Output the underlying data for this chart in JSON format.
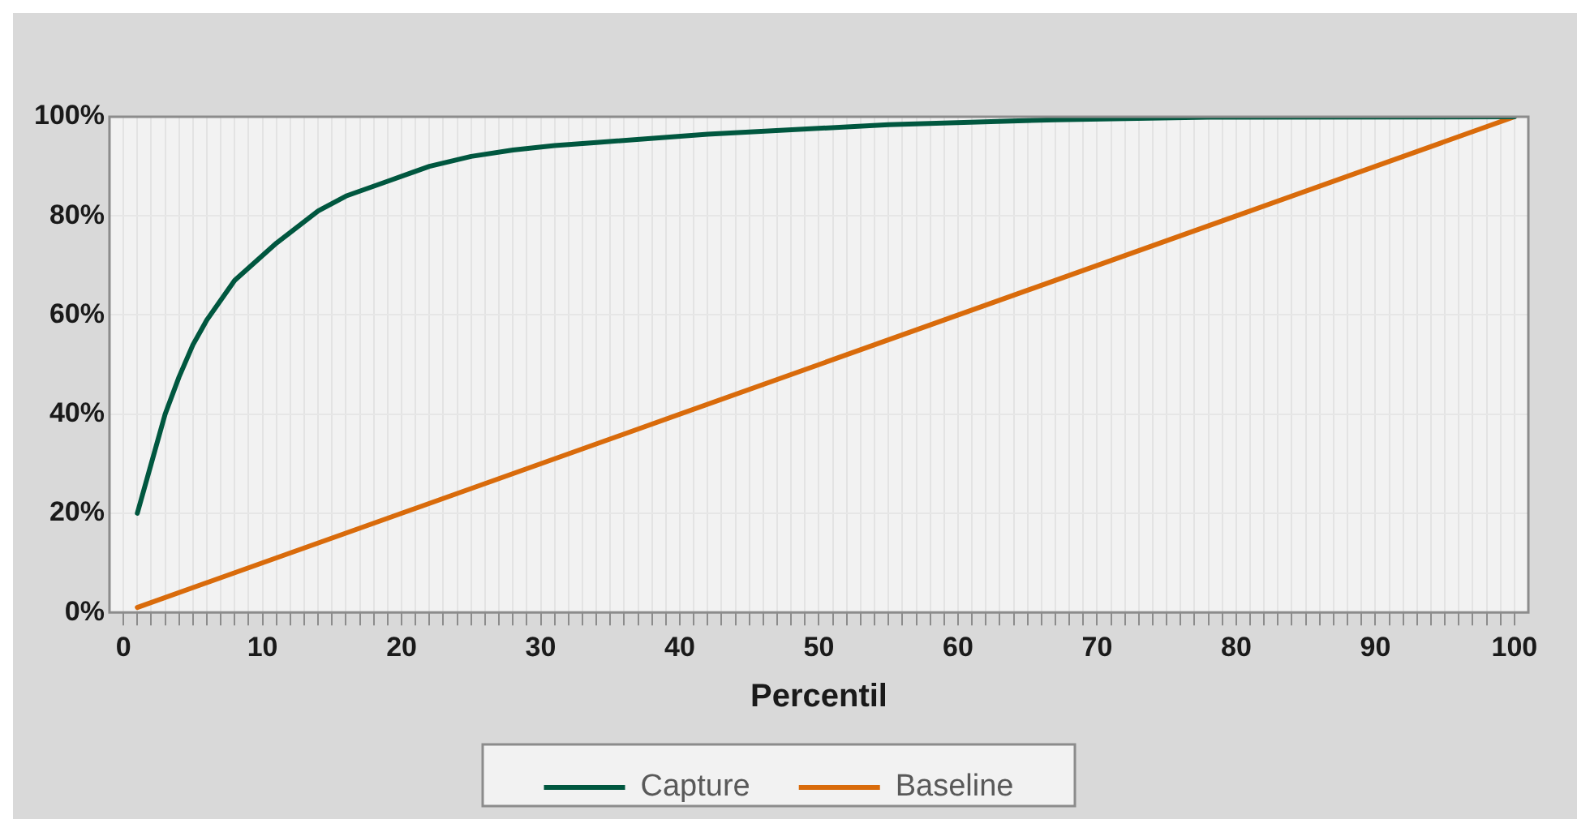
{
  "chart_data": {
    "type": "line",
    "xlabel": "Percentil",
    "xlim": [
      -1,
      101
    ],
    "xticks": [
      0,
      {
        "value": 1,
        "label": null
      },
      {
        "value": 2,
        "label": null
      },
      {
        "value": 3,
        "label": null
      },
      {
        "value": 4,
        "label": null
      },
      {
        "value": 5,
        "label": null
      },
      {
        "value": 6,
        "label": null
      },
      {
        "value": 7,
        "label": null
      },
      {
        "value": 8,
        "label": null
      },
      {
        "value": 9,
        "label": null
      },
      10,
      {
        "value": 11,
        "label": null
      },
      {
        "value": 12,
        "label": null
      },
      {
        "value": 13,
        "label": null
      },
      {
        "value": 14,
        "label": null
      },
      {
        "value": 15,
        "label": null
      },
      {
        "value": 16,
        "label": null
      },
      {
        "value": 17,
        "label": null
      },
      {
        "value": 18,
        "label": null
      },
      {
        "value": 19,
        "label": null
      },
      20,
      {
        "value": 21,
        "label": null
      },
      {
        "value": 22,
        "label": null
      },
      {
        "value": 23,
        "label": null
      },
      {
        "value": 24,
        "label": null
      },
      {
        "value": 25,
        "label": null
      },
      {
        "value": 26,
        "label": null
      },
      {
        "value": 27,
        "label": null
      },
      {
        "value": 28,
        "label": null
      },
      {
        "value": 29,
        "label": null
      },
      30,
      {
        "value": 31,
        "label": null
      },
      {
        "value": 32,
        "label": null
      },
      {
        "value": 33,
        "label": null
      },
      {
        "value": 34,
        "label": null
      },
      {
        "value": 35,
        "label": null
      },
      {
        "value": 36,
        "label": null
      },
      {
        "value": 37,
        "label": null
      },
      {
        "value": 38,
        "label": null
      },
      {
        "value": 39,
        "label": null
      },
      40,
      {
        "value": 41,
        "label": null
      },
      {
        "value": 42,
        "label": null
      },
      {
        "value": 43,
        "label": null
      },
      {
        "value": 44,
        "label": null
      },
      {
        "value": 45,
        "label": null
      },
      {
        "value": 46,
        "label": null
      },
      {
        "value": 47,
        "label": null
      },
      {
        "value": 48,
        "label": null
      },
      {
        "value": 49,
        "label": null
      },
      50,
      {
        "value": 51,
        "label": null
      },
      {
        "value": 52,
        "label": null
      },
      {
        "value": 53,
        "label": null
      },
      {
        "value": 54,
        "label": null
      },
      {
        "value": 55,
        "label": null
      },
      {
        "value": 56,
        "label": null
      },
      {
        "value": 57,
        "label": null
      },
      {
        "value": 58,
        "label": null
      },
      {
        "value": 59,
        "label": null
      },
      60,
      {
        "value": 61,
        "label": null
      },
      {
        "value": 62,
        "label": null
      },
      {
        "value": 63,
        "label": null
      },
      {
        "value": 64,
        "label": null
      },
      {
        "value": 65,
        "label": null
      },
      {
        "value": 66,
        "label": null
      },
      {
        "value": 67,
        "label": null
      },
      {
        "value": 68,
        "label": null
      },
      {
        "value": 69,
        "label": null
      },
      70,
      {
        "value": 71,
        "label": null
      },
      {
        "value": 72,
        "label": null
      },
      {
        "value": 73,
        "label": null
      },
      {
        "value": 74,
        "label": null
      },
      {
        "value": 75,
        "label": null
      },
      {
        "value": 76,
        "label": null
      },
      {
        "value": 77,
        "label": null
      },
      {
        "value": 78,
        "label": null
      },
      {
        "value": 79,
        "label": null
      },
      80,
      {
        "value": 81,
        "label": null
      },
      {
        "value": 82,
        "label": null
      },
      {
        "value": 83,
        "label": null
      },
      {
        "value": 84,
        "label": null
      },
      {
        "value": 85,
        "label": null
      },
      {
        "value": 86,
        "label": null
      },
      {
        "value": 87,
        "label": null
      },
      {
        "value": 88,
        "label": null
      },
      {
        "value": 89,
        "label": null
      },
      90,
      {
        "value": 91,
        "label": null
      },
      {
        "value": 92,
        "label": null
      },
      {
        "value": 93,
        "label": null
      },
      {
        "value": 94,
        "label": null
      },
      {
        "value": 95,
        "label": null
      },
      {
        "value": 96,
        "label": null
      },
      {
        "value": 97,
        "label": null
      },
      {
        "value": 98,
        "label": null
      },
      {
        "value": 99,
        "label": null
      },
      100
    ],
    "ylim": [
      0,
      100
    ],
    "yticks": [
      {
        "value": 0,
        "label": "0%"
      },
      {
        "value": 20,
        "label": "20%"
      },
      {
        "value": 40,
        "label": "40%"
      },
      {
        "value": 60,
        "label": "60%"
      },
      {
        "value": 80,
        "label": "80%"
      },
      {
        "value": 100,
        "label": "100%"
      }
    ],
    "grid": true,
    "legend": "bottom",
    "marker": "none",
    "line_style": "solid",
    "series": [
      {
        "name": "Capture",
        "color": "#00573f",
        "x": [
          1,
          2,
          3,
          4,
          5,
          6,
          8,
          11,
          14,
          16,
          19,
          22,
          25,
          28,
          31,
          34,
          42,
          55,
          67,
          78,
          100
        ],
        "values": [
          20,
          30,
          40,
          47.5,
          54,
          59,
          67,
          74.5,
          81,
          84,
          87,
          90,
          92,
          93.3,
          94.2,
          94.8,
          96.5,
          98.4,
          99.4,
          99.9,
          100
        ]
      },
      {
        "name": "Baseline",
        "color": "#d96b0b",
        "x": [
          1,
          100
        ],
        "values": [
          1,
          100
        ]
      }
    ]
  }
}
